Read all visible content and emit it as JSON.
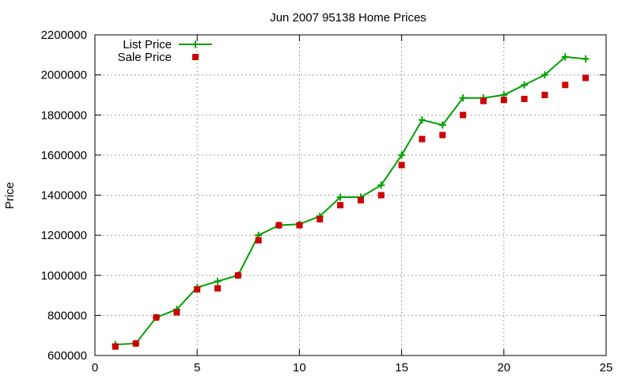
{
  "chart_data": {
    "type": "line",
    "title": "Jun 2007 95138 Home Prices",
    "xlabel": "",
    "ylabel": "Price",
    "xlim": [
      0,
      25
    ],
    "ylim": [
      600000,
      2200000
    ],
    "xticks": [
      0,
      5,
      10,
      15,
      20,
      25
    ],
    "yticks": [
      600000,
      800000,
      1000000,
      1200000,
      1400000,
      1600000,
      1800000,
      2000000,
      2200000
    ],
    "grid": true,
    "legend_position": "top-left",
    "series": [
      {
        "name": "List Price",
        "style": "linespoints",
        "marker": "plus",
        "color": "#00a000",
        "points": [
          [
            1,
            655000
          ],
          [
            2,
            660000
          ],
          [
            3,
            790000
          ],
          [
            4,
            830000
          ],
          [
            5,
            940000
          ],
          [
            6,
            970000
          ],
          [
            7,
            1000000
          ],
          [
            8,
            1200000
          ],
          [
            9,
            1250000
          ],
          [
            10,
            1255000
          ],
          [
            11,
            1295000
          ],
          [
            12,
            1390000
          ],
          [
            13,
            1390000
          ],
          [
            14,
            1450000
          ],
          [
            15,
            1600000
          ],
          [
            16,
            1775000
          ],
          [
            17,
            1750000
          ],
          [
            18,
            1885000
          ],
          [
            19,
            1885000
          ],
          [
            20,
            1900000
          ],
          [
            21,
            1950000
          ],
          [
            22,
            2000000
          ],
          [
            23,
            2090000
          ],
          [
            24,
            2080000
          ]
        ]
      },
      {
        "name": "Sale Price",
        "style": "points",
        "marker": "square",
        "color": "#cc0000",
        "points": [
          [
            1,
            645000
          ],
          [
            2,
            660000
          ],
          [
            3,
            790000
          ],
          [
            4,
            815000
          ],
          [
            5,
            930000
          ],
          [
            6,
            935000
          ],
          [
            7,
            1000000
          ],
          [
            8,
            1175000
          ],
          [
            9,
            1250000
          ],
          [
            10,
            1250000
          ],
          [
            11,
            1280000
          ],
          [
            12,
            1350000
          ],
          [
            13,
            1375000
          ],
          [
            14,
            1400000
          ],
          [
            15,
            1550000
          ],
          [
            16,
            1680000
          ],
          [
            17,
            1700000
          ],
          [
            18,
            1800000
          ],
          [
            19,
            1870000
          ],
          [
            20,
            1875000
          ],
          [
            21,
            1880000
          ],
          [
            22,
            1900000
          ],
          [
            23,
            1950000
          ],
          [
            24,
            1985000
          ]
        ]
      }
    ]
  }
}
